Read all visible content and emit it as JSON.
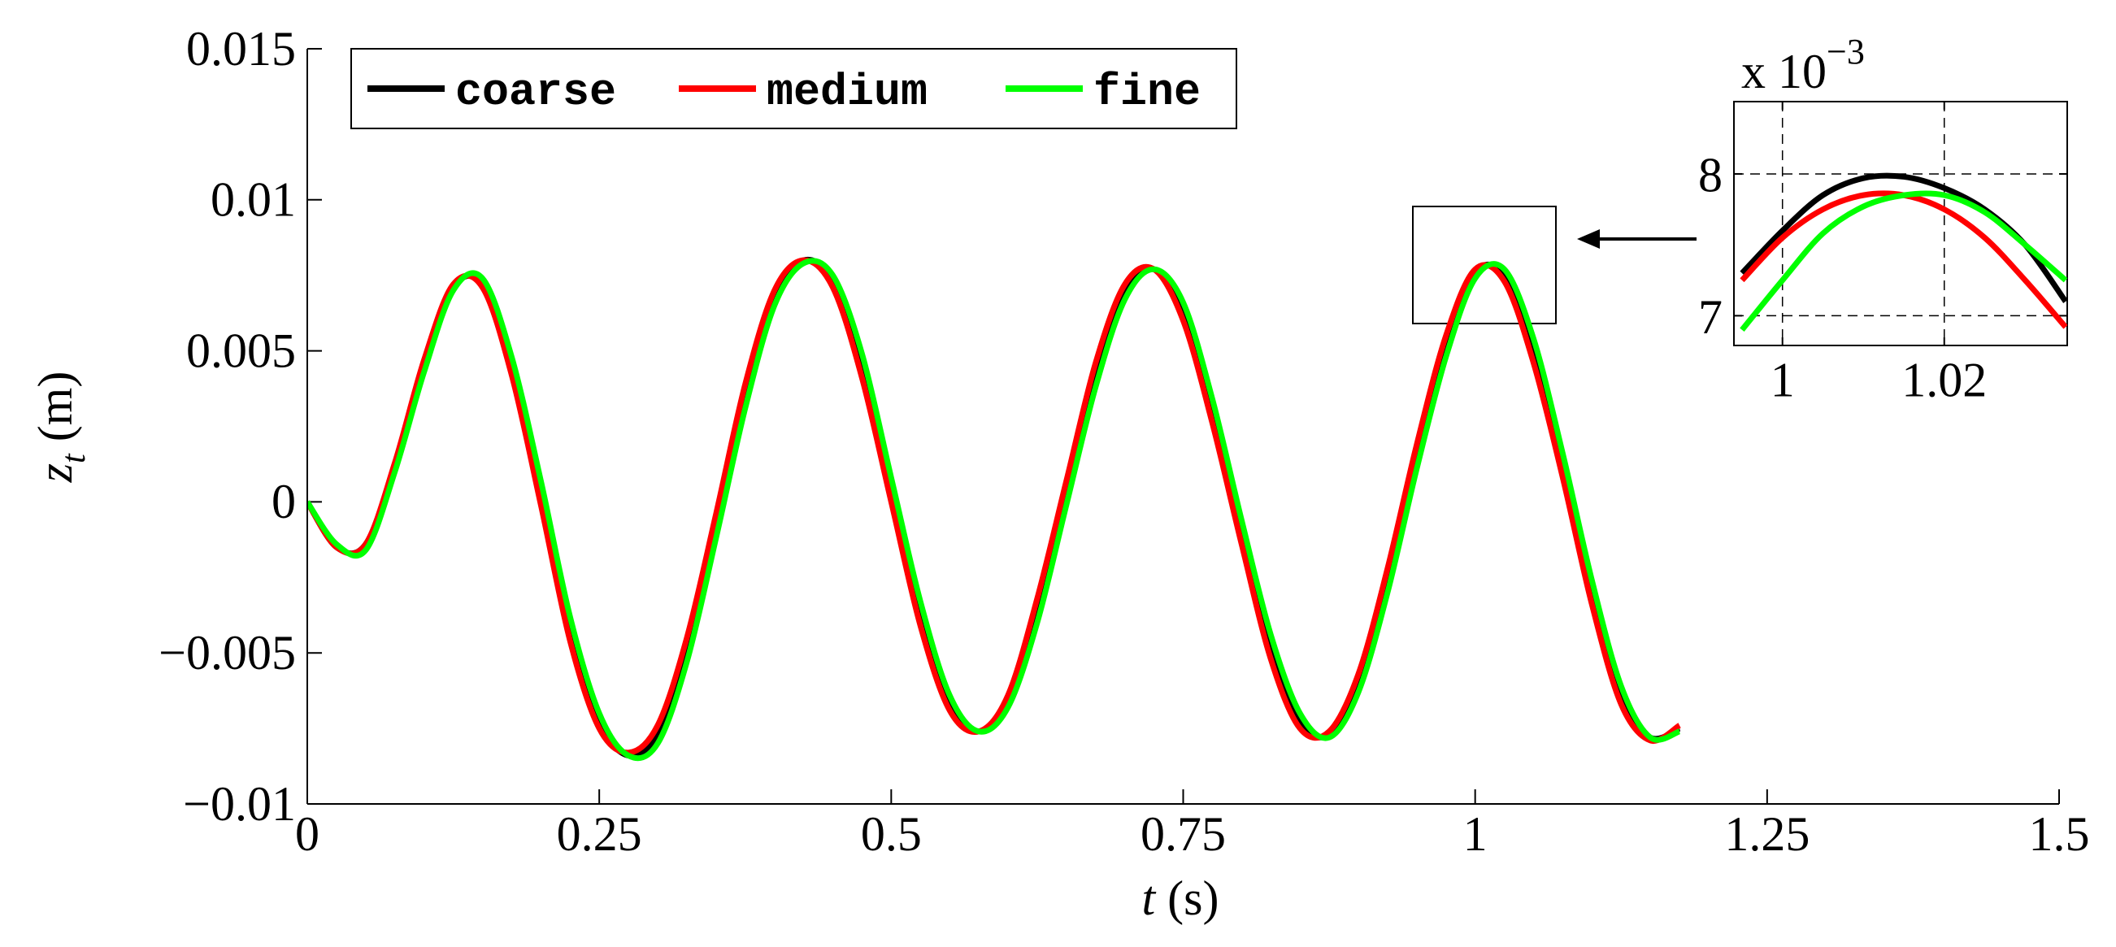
{
  "chart_data": [
    {
      "type": "line",
      "xlabel": {
        "symbol": "t",
        "unit": "(s)"
      },
      "ylabel": {
        "symbol": "z",
        "subscript": "t",
        "unit": "(m)"
      },
      "x": [
        0,
        0.025,
        0.05,
        0.075,
        0.1,
        0.125,
        0.15,
        0.175,
        0.2,
        0.225,
        0.25,
        0.275,
        0.3,
        0.325,
        0.35,
        0.375,
        0.4,
        0.425,
        0.45,
        0.475,
        0.5,
        0.525,
        0.55,
        0.575,
        0.6,
        0.625,
        0.65,
        0.675,
        0.7,
        0.725,
        0.75,
        0.775,
        0.8,
        0.825,
        0.85,
        0.875,
        0.9,
        0.925,
        0.95,
        0.975,
        1.0,
        1.025,
        1.05,
        1.075,
        1.1,
        1.125,
        1.15,
        1.175
      ],
      "series": [
        {
          "name": "coarse",
          "color": "#000000",
          "values": [
            0,
            -0.0015,
            -0.0014,
            0.0012,
            0.0045,
            0.0071,
            0.0072,
            0.0045,
            0.0003,
            -0.0042,
            -0.0073,
            -0.0084,
            -0.0077,
            -0.0049,
            -0.0008,
            0.0035,
            0.0068,
            0.008,
            0.0073,
            0.0045,
            0.0004,
            -0.0037,
            -0.0067,
            -0.0076,
            -0.0066,
            -0.0036,
            0.0003,
            0.0042,
            0.007,
            0.0077,
            0.0063,
            0.003,
            -0.001,
            -0.0048,
            -0.0073,
            -0.0077,
            -0.006,
            -0.0026,
            0.0015,
            0.0052,
            0.0076,
            0.0075,
            0.005,
            0.0012,
            -0.003,
            -0.0064,
            -0.0078,
            -0.0075
          ]
        },
        {
          "name": "medium",
          "color": "#ff0000",
          "values": [
            0,
            -0.0015,
            -0.0014,
            0.0013,
            0.0047,
            0.0072,
            0.0071,
            0.0042,
            -0.0001,
            -0.0046,
            -0.0075,
            -0.0083,
            -0.0074,
            -0.0045,
            -0.0004,
            0.0039,
            0.007,
            0.008,
            0.0071,
            0.0041,
            0,
            -0.0041,
            -0.0069,
            -0.0076,
            -0.0064,
            -0.0032,
            0.0007,
            0.0046,
            0.0072,
            0.0077,
            0.006,
            0.0026,
            -0.0014,
            -0.0052,
            -0.0075,
            -0.0076,
            -0.0057,
            -0.0022,
            0.0019,
            0.0055,
            0.0077,
            0.0073,
            0.0046,
            0.0008,
            -0.0034,
            -0.0067,
            -0.0079,
            -0.0074
          ]
        },
        {
          "name": "fine",
          "color": "#00ff00",
          "values": [
            0,
            -0.0014,
            -0.0016,
            0.001,
            0.0043,
            0.007,
            0.0074,
            0.0048,
            0.0007,
            -0.0038,
            -0.007,
            -0.0084,
            -0.008,
            -0.0053,
            -0.0012,
            0.0031,
            0.0065,
            0.0079,
            0.0075,
            0.0049,
            0.0008,
            -0.0033,
            -0.0064,
            -0.0076,
            -0.0068,
            -0.004,
            -0.0001,
            0.0038,
            0.0067,
            0.0077,
            0.0066,
            0.0034,
            -0.0006,
            -0.0044,
            -0.007,
            -0.0078,
            -0.0063,
            -0.003,
            0.0011,
            0.0048,
            0.0074,
            0.0077,
            0.0054,
            0.0016,
            -0.0026,
            -0.0061,
            -0.0078,
            -0.0076
          ]
        }
      ],
      "xlim": [
        0,
        1.5
      ],
      "xticks": [
        0,
        0.25,
        0.5,
        0.75,
        1,
        1.25,
        1.5
      ],
      "ylim": [
        -0.01,
        0.015
      ],
      "yticks": [
        {
          "value": -0.01,
          "label": "−0.01"
        },
        {
          "value": -0.005,
          "label": "−0.005"
        },
        0,
        0.005,
        0.01,
        0.015
      ],
      "grid": false,
      "legend": "top-left"
    },
    {
      "type": "line",
      "offset_label": {
        "base": "x 10",
        "exponent": "−3"
      },
      "x": [
        0.995,
        1.0,
        1.005,
        1.01,
        1.015,
        1.02,
        1.025,
        1.03,
        1.035
      ],
      "series": [
        {
          "name": "coarse",
          "color": "#000000",
          "values": [
            7.3,
            7.6,
            7.85,
            7.97,
            7.98,
            7.9,
            7.75,
            7.5,
            7.1
          ]
        },
        {
          "name": "medium",
          "color": "#ff0000",
          "values": [
            7.25,
            7.55,
            7.75,
            7.85,
            7.85,
            7.75,
            7.55,
            7.25,
            6.92
          ]
        },
        {
          "name": "fine",
          "color": "#00ff00",
          "values": [
            6.9,
            7.25,
            7.58,
            7.77,
            7.85,
            7.85,
            7.73,
            7.5,
            7.25
          ]
        }
      ],
      "xlim": [
        0.994,
        1.0352
      ],
      "xticks": [
        1,
        1.02
      ],
      "ylim": [
        6.79,
        8.51
      ],
      "yticks": [
        7,
        8
      ],
      "grid": true
    }
  ]
}
